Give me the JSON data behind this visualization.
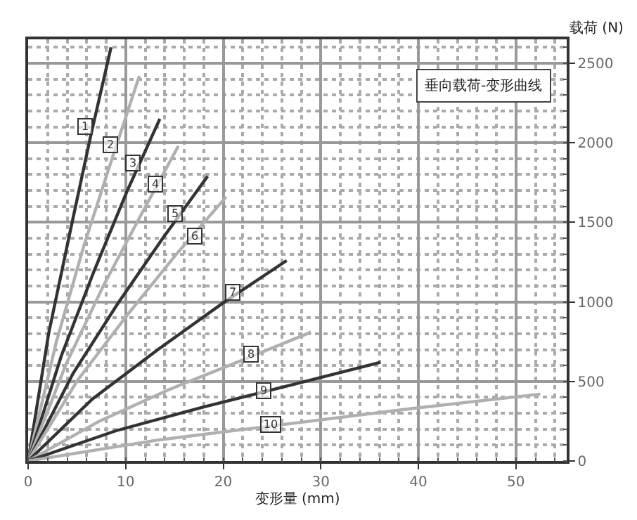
{
  "chart_data": {
    "type": "line",
    "title": "垂向载荷-变形曲线",
    "xlabel": "变形量 (mm)",
    "ylabel": "载荷 (N)",
    "xlim": [
      0,
      55.2
    ],
    "xticks": [
      0,
      10,
      20,
      30,
      40,
      50
    ],
    "ylim": [
      0,
      2650
    ],
    "yticks": [
      0,
      500,
      1000,
      1500,
      2000,
      2500
    ],
    "grid": true,
    "marker": "none",
    "line_style": "solid",
    "series": [
      {
        "color": "#333333",
        "x": [
          0,
          2.1,
          4.3,
          6.4,
          8.5
        ],
        "values": [
          0,
          800,
          1440,
          2040,
          2600
        ]
      },
      {
        "color": "#b0b0b0",
        "x": [
          0,
          2.9,
          5.7,
          8.6,
          11.4
        ],
        "values": [
          0,
          750,
          1350,
          1900,
          2420
        ]
      },
      {
        "color": "#333333",
        "x": [
          0,
          3.4,
          6.8,
          10.1,
          13.5
        ],
        "values": [
          0,
          660,
          1200,
          1690,
          2150
        ]
      },
      {
        "color": "#b0b0b0",
        "x": [
          0,
          3.9,
          7.7,
          11.6,
          15.4
        ],
        "values": [
          0,
          610,
          1100,
          1550,
          1980
        ]
      },
      {
        "color": "#333333",
        "x": [
          0,
          4.6,
          9.2,
          13.8,
          18.4
        ],
        "values": [
          0,
          550,
          990,
          1400,
          1790
        ]
      },
      {
        "color": "#b0b0b0",
        "x": [
          0,
          5.1,
          10.2,
          15.2,
          20.3
        ],
        "values": [
          0,
          510,
          920,
          1300,
          1660
        ]
      },
      {
        "color": "#333333",
        "x": [
          0,
          6.6,
          13.3,
          19.9,
          26.5
        ],
        "values": [
          0,
          390,
          700,
          990,
          1260
        ]
      },
      {
        "color": "#b0b0b0",
        "x": [
          0,
          7.3,
          14.5,
          21.8,
          29
        ],
        "values": [
          0,
          250,
          450,
          630,
          810
        ]
      },
      {
        "color": "#333333",
        "x": [
          0,
          9,
          18,
          27.1,
          36.1
        ],
        "values": [
          0,
          190,
          340,
          480,
          620
        ]
      },
      {
        "color": "#b0b0b0",
        "x": [
          0,
          13.1,
          26.3,
          39.4,
          52.5
        ],
        "values": [
          0,
          130,
          230,
          330,
          420
        ]
      }
    ],
    "annotations": [
      {
        "text": "1",
        "x": 5.8,
        "y": 2100
      },
      {
        "text": "2",
        "x": 8.4,
        "y": 1990
      },
      {
        "text": "3",
        "x": 10.8,
        "y": 1877
      },
      {
        "text": "4",
        "x": 13.0,
        "y": 1738
      },
      {
        "text": "5",
        "x": 15.0,
        "y": 1555
      },
      {
        "text": "6",
        "x": 17.1,
        "y": 1416
      },
      {
        "text": "7",
        "x": 20.9,
        "y": 1059
      },
      {
        "text": "8",
        "x": 22.9,
        "y": 668
      },
      {
        "text": "9",
        "x": 24.1,
        "y": 440
      },
      {
        "text": "10",
        "x": 24.8,
        "y": 233
      }
    ]
  }
}
